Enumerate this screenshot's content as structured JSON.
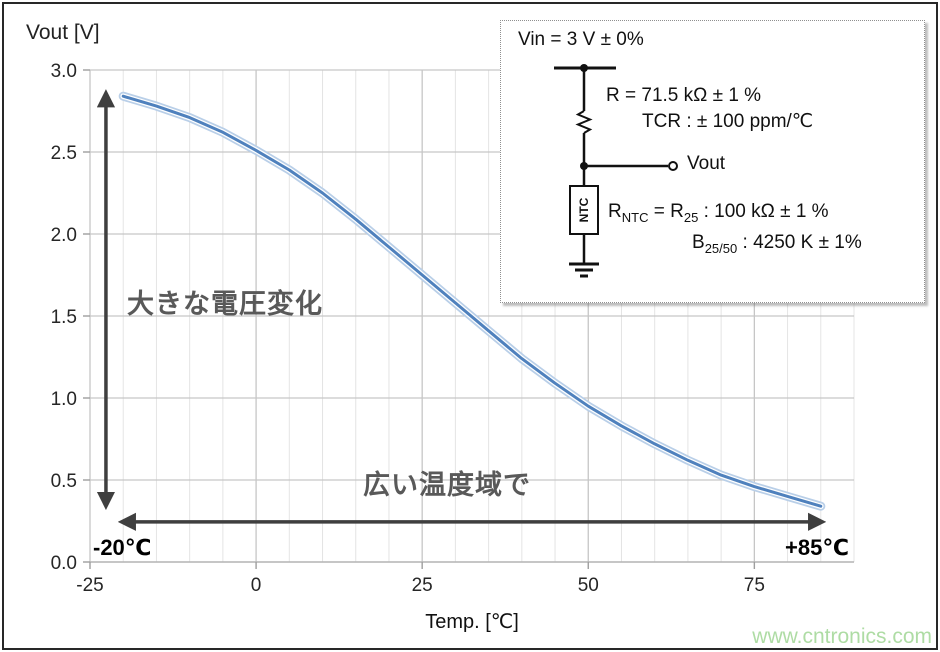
{
  "page": {
    "watermark": "www.cntronics.com",
    "watermark_color": "#aedca4",
    "frame_color": "#282828"
  },
  "chart": {
    "y_axis_title": "Vout [V]",
    "x_axis_title": "Temp. [℃]"
  },
  "annotations": {
    "voltage_change_label": "大きな電圧変化",
    "temp_range_label": "広い温度域で",
    "temp_min_label": "-20℃",
    "temp_max_label": "+85℃"
  },
  "inset": {
    "vin_line": "Vin = 3 V ± 0%",
    "r_line": "R = 71.5 kΩ ± 1 %",
    "tcr_line": "TCR : ± 100 ppm/℃",
    "vout_label": "Vout",
    "ntc_box_label": "NTC",
    "rntc": {
      "r1": "R",
      "sub1": "NTC",
      "eq": " = ",
      "r2": "R",
      "sub2": "25",
      "rest": " : 100 kΩ ± 1 %"
    },
    "b": {
      "b": "B",
      "sub": "25/50",
      "rest": " : 4250 K ± 1%"
    }
  },
  "chart_data": {
    "type": "line",
    "title": "",
    "xlabel": "Temp. [℃]",
    "ylabel": "Vout [V]",
    "xlim": [
      -25,
      90
    ],
    "ylim": [
      0.0,
      3.0
    ],
    "grid": "on",
    "minor_grid_step_x": 5,
    "x_tick_values": [
      -25,
      0,
      25,
      50,
      75
    ],
    "x_tick_labels": [
      "-25",
      "0",
      "25",
      "50",
      "75"
    ],
    "y_tick_values": [
      3.0,
      2.5,
      2.0,
      1.5,
      1.0,
      0.5,
      0.0
    ],
    "y_tick_labels": [
      "3.0",
      "2.5",
      "2.0",
      "1.5",
      "1.0",
      "0.5",
      "0.0"
    ],
    "grid_colors": {
      "minor": "#e4e4e4",
      "major": "#c6c6c6",
      "axis": "#b4b4b4",
      "tick": "#9e9e9e"
    },
    "series": [
      {
        "name": "Vout",
        "color": "#4f81bd",
        "band_color": "#b9cfe8",
        "tolerance_band": true,
        "x": [
          -20,
          -15,
          -10,
          -5,
          0,
          5,
          10,
          15,
          20,
          25,
          30,
          35,
          40,
          45,
          50,
          55,
          60,
          65,
          70,
          75,
          80,
          85
        ],
        "y": [
          2.84,
          2.78,
          2.71,
          2.62,
          2.51,
          2.39,
          2.25,
          2.09,
          1.92,
          1.75,
          1.58,
          1.41,
          1.24,
          1.09,
          0.95,
          0.83,
          0.72,
          0.62,
          0.53,
          0.46,
          0.4,
          0.34
        ]
      }
    ],
    "arrows": [
      {
        "id": "voltage-range-arrow",
        "orientation": "vertical",
        "x": -22.6,
        "y_from": 0.35,
        "y_to": 2.85,
        "color": "#3f3f3f"
      },
      {
        "id": "temp-range-arrow",
        "orientation": "horizontal",
        "y": 0.245,
        "x_from": -20,
        "x_to": 85,
        "color": "#3f3f3f"
      }
    ]
  }
}
